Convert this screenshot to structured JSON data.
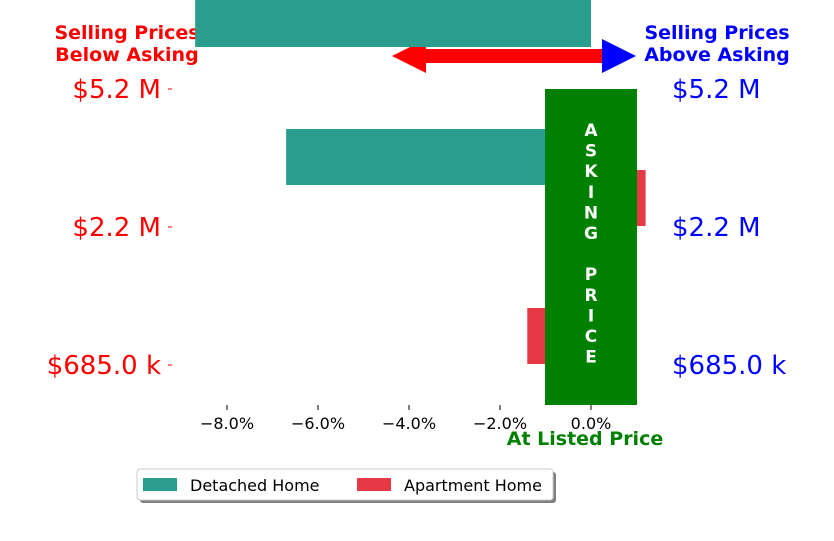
{
  "header": {
    "below_asking": [
      "Selling Prices",
      "Below Asking"
    ],
    "above_asking": [
      "Selling Prices",
      "Above Asking"
    ]
  },
  "banner": {
    "letters": [
      "A",
      "S",
      "K",
      "I",
      "N",
      "G",
      "",
      "P",
      "R",
      "I",
      "C",
      "E"
    ]
  },
  "colors": {
    "detached": "#2a9d8f",
    "apartment": "#e63946",
    "asking_band": "#008000",
    "below": "#ff0000",
    "above": "#0000ff",
    "arrow": "#ff0000",
    "arrow_head_right": "#0000ff"
  },
  "chart_data": {
    "type": "bar",
    "orientation": "horizontal",
    "xlabel": "At Listed Price",
    "xlim": [
      -9.5,
      1.2
    ],
    "xticks": [
      -8,
      -6,
      -4,
      -2,
      0
    ],
    "xtick_labels": [
      "−8.0%",
      "−6.0%",
      "−4.0%",
      "−2.0%",
      "0.0%"
    ],
    "y_levels": [
      {
        "value": 5.2,
        "left_label": "$5.2 M",
        "right_label": "$5.2 M"
      },
      {
        "value": 2.2,
        "left_label": "$2.2 M",
        "right_label": "$2.2 M"
      },
      {
        "value": 0.685,
        "left_label": "$685.0 k",
        "right_label": "$685.0 k"
      }
    ],
    "series": [
      {
        "name": "Detached Home",
        "values": [
          -8.7,
          -6.7,
          null
        ]
      },
      {
        "name": "Apartment Home",
        "values": [
          null,
          1.2,
          -1.4
        ]
      }
    ],
    "legend_position": "bottom"
  }
}
